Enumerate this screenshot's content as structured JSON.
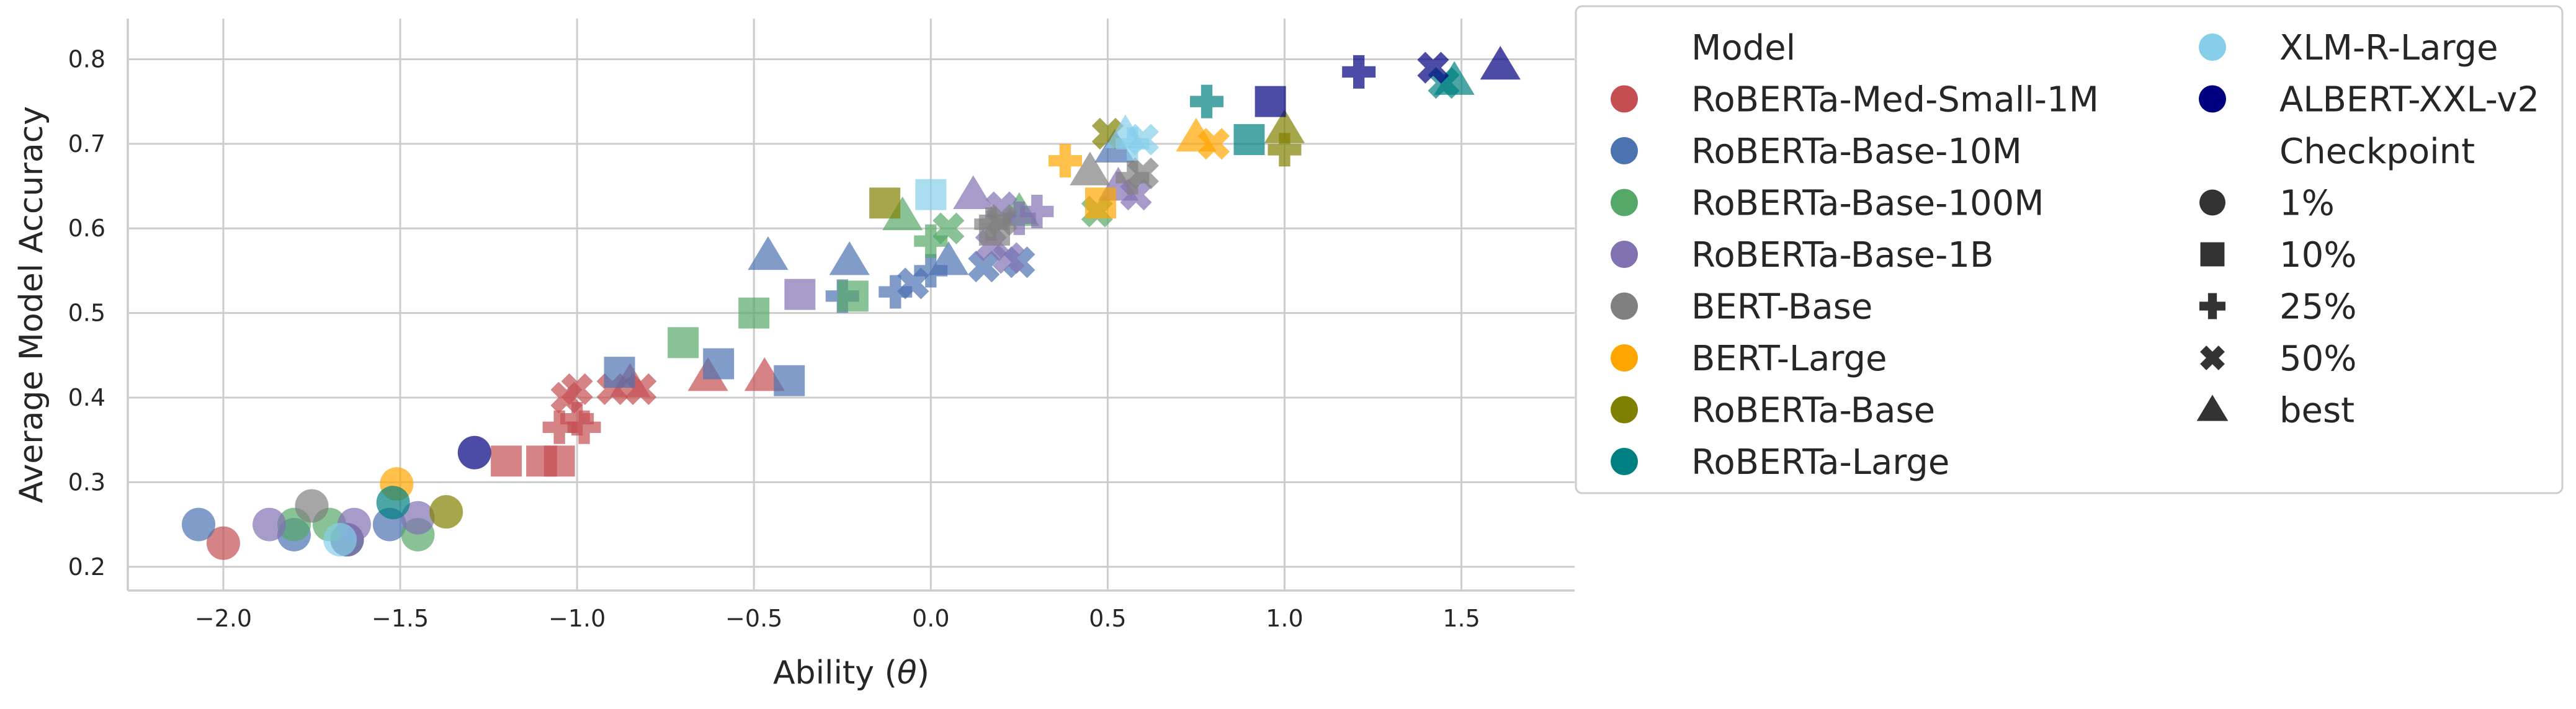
{
  "chart_data": {
    "type": "scatter",
    "title": "",
    "xlabel": "Ability (",
    "xlabel_symbol": "θ",
    "xlabel_suffix": ")",
    "ylabel": "Average Model Accuracy",
    "xlim": [
      -2.27,
      1.82
    ],
    "ylim": [
      0.172,
      0.848
    ],
    "xticks": [
      -2.0,
      -1.5,
      -1.0,
      -0.5,
      0.0,
      0.5,
      1.0,
      1.5
    ],
    "xtick_labels": [
      "−2.0",
      "−1.5",
      "−1.0",
      "−0.5",
      "0.0",
      "0.5",
      "1.0",
      "1.5"
    ],
    "yticks": [
      0.2,
      0.3,
      0.4,
      0.5,
      0.6,
      0.7,
      0.8
    ],
    "ytick_labels": [
      "0.2",
      "0.3",
      "0.4",
      "0.5",
      "0.6",
      "0.7",
      "0.8"
    ],
    "grid": true,
    "legend_placement": "outside-right",
    "legend": {
      "hue_title": "Model",
      "style_title": "Checkpoint",
      "models": [
        {
          "name": "RoBERTa-Med-Small-1M",
          "color": "#c44e52"
        },
        {
          "name": "RoBERTa-Base-10M",
          "color": "#4c72b0"
        },
        {
          "name": "RoBERTa-Base-100M",
          "color": "#55a868"
        },
        {
          "name": "RoBERTa-Base-1B",
          "color": "#8172b2"
        },
        {
          "name": "BERT-Base",
          "color": "#808080"
        },
        {
          "name": "BERT-Large",
          "color": "#ffa500"
        },
        {
          "name": "RoBERTa-Base",
          "color": "#808000"
        },
        {
          "name": "RoBERTa-Large",
          "color": "#008080"
        },
        {
          "name": "XLM-R-Large",
          "color": "#87ceeb"
        },
        {
          "name": "ALBERT-XXL-v2",
          "color": "#000080"
        }
      ],
      "checkpoints": [
        {
          "name": "1%",
          "marker": "circle"
        },
        {
          "name": "10%",
          "marker": "square"
        },
        {
          "name": "25%",
          "marker": "plus"
        },
        {
          "name": "50%",
          "marker": "x"
        },
        {
          "name": "best",
          "marker": "triangle"
        }
      ]
    },
    "series": [
      {
        "name": "RoBERTa-Med-Small-1M",
        "color": "#c44e52",
        "points": [
          {
            "x": -2.0,
            "y": 0.228,
            "m": "circle"
          },
          {
            "x": -1.65,
            "y": 0.232,
            "m": "circle"
          },
          {
            "x": -1.2,
            "y": 0.325,
            "m": "square"
          },
          {
            "x": -1.1,
            "y": 0.325,
            "m": "square"
          },
          {
            "x": -1.05,
            "y": 0.325,
            "m": "square"
          },
          {
            "x": -1.05,
            "y": 0.365,
            "m": "plus"
          },
          {
            "x": -1.0,
            "y": 0.375,
            "m": "plus"
          },
          {
            "x": -0.98,
            "y": 0.365,
            "m": "plus"
          },
          {
            "x": -1.03,
            "y": 0.4,
            "m": "x"
          },
          {
            "x": -1.0,
            "y": 0.41,
            "m": "x"
          },
          {
            "x": -0.9,
            "y": 0.41,
            "m": "x"
          },
          {
            "x": -0.82,
            "y": 0.41,
            "m": "x"
          },
          {
            "x": -0.85,
            "y": 0.418,
            "m": "triangle"
          },
          {
            "x": -0.63,
            "y": 0.425,
            "m": "triangle"
          },
          {
            "x": -0.47,
            "y": 0.425,
            "m": "triangle"
          }
        ]
      },
      {
        "name": "RoBERTa-Base-10M",
        "color": "#4c72b0",
        "points": [
          {
            "x": -2.07,
            "y": 0.25,
            "m": "circle"
          },
          {
            "x": -1.8,
            "y": 0.238,
            "m": "circle"
          },
          {
            "x": -1.53,
            "y": 0.25,
            "m": "circle"
          },
          {
            "x": -1.65,
            "y": 0.232,
            "m": "circle"
          },
          {
            "x": -0.88,
            "y": 0.43,
            "m": "square"
          },
          {
            "x": -0.6,
            "y": 0.44,
            "m": "square"
          },
          {
            "x": -0.4,
            "y": 0.42,
            "m": "square"
          },
          {
            "x": -0.25,
            "y": 0.52,
            "m": "plus"
          },
          {
            "x": -0.1,
            "y": 0.525,
            "m": "plus"
          },
          {
            "x": 0.0,
            "y": 0.55,
            "m": "plus"
          },
          {
            "x": -0.05,
            "y": 0.535,
            "m": "x"
          },
          {
            "x": 0.15,
            "y": 0.555,
            "m": "x"
          },
          {
            "x": 0.25,
            "y": 0.56,
            "m": "x"
          },
          {
            "x": -0.46,
            "y": 0.568,
            "m": "triangle"
          },
          {
            "x": -0.23,
            "y": 0.562,
            "m": "triangle"
          },
          {
            "x": 0.05,
            "y": 0.562,
            "m": "triangle"
          },
          {
            "x": 0.52,
            "y": 0.695,
            "m": "triangle"
          }
        ]
      },
      {
        "name": "RoBERTa-Base-100M",
        "color": "#55a868",
        "points": [
          {
            "x": -1.8,
            "y": 0.25,
            "m": "circle"
          },
          {
            "x": -1.45,
            "y": 0.238,
            "m": "circle"
          },
          {
            "x": -1.7,
            "y": 0.25,
            "m": "circle"
          },
          {
            "x": -0.7,
            "y": 0.465,
            "m": "square"
          },
          {
            "x": -0.5,
            "y": 0.5,
            "m": "square"
          },
          {
            "x": -0.22,
            "y": 0.52,
            "m": "square"
          },
          {
            "x": 0.0,
            "y": 0.585,
            "m": "plus"
          },
          {
            "x": 0.05,
            "y": 0.6,
            "m": "x"
          },
          {
            "x": 0.47,
            "y": 0.62,
            "m": "x"
          },
          {
            "x": -0.08,
            "y": 0.615,
            "m": "triangle"
          },
          {
            "x": 0.25,
            "y": 0.62,
            "m": "triangle"
          }
        ]
      },
      {
        "name": "RoBERTa-Base-1B",
        "color": "#8172b2",
        "points": [
          {
            "x": -1.87,
            "y": 0.25,
            "m": "circle"
          },
          {
            "x": -1.63,
            "y": 0.25,
            "m": "circle"
          },
          {
            "x": -1.45,
            "y": 0.258,
            "m": "circle"
          },
          {
            "x": -0.37,
            "y": 0.522,
            "m": "square"
          },
          {
            "x": 0.3,
            "y": 0.62,
            "m": "plus"
          },
          {
            "x": 0.25,
            "y": 0.612,
            "m": "plus"
          },
          {
            "x": 0.2,
            "y": 0.625,
            "m": "x"
          },
          {
            "x": 0.17,
            "y": 0.58,
            "m": "x"
          },
          {
            "x": 0.58,
            "y": 0.64,
            "m": "x"
          },
          {
            "x": 0.22,
            "y": 0.565,
            "m": "x"
          },
          {
            "x": 0.12,
            "y": 0.64,
            "m": "triangle"
          },
          {
            "x": 0.53,
            "y": 0.65,
            "m": "triangle"
          }
        ]
      },
      {
        "name": "BERT-Base",
        "color": "#808080",
        "points": [
          {
            "x": -1.75,
            "y": 0.272,
            "m": "circle"
          },
          {
            "x": 0.18,
            "y": 0.598,
            "m": "square"
          },
          {
            "x": 0.17,
            "y": 0.605,
            "m": "plus"
          },
          {
            "x": 0.57,
            "y": 0.66,
            "m": "plus"
          },
          {
            "x": 0.2,
            "y": 0.61,
            "m": "x"
          },
          {
            "x": 0.6,
            "y": 0.665,
            "m": "x"
          },
          {
            "x": 0.45,
            "y": 0.668,
            "m": "triangle"
          }
        ]
      },
      {
        "name": "BERT-Large",
        "color": "#ffa500",
        "points": [
          {
            "x": -1.51,
            "y": 0.298,
            "m": "circle"
          },
          {
            "x": 0.48,
            "y": 0.63,
            "m": "square"
          },
          {
            "x": 0.38,
            "y": 0.68,
            "m": "plus"
          },
          {
            "x": 0.8,
            "y": 0.7,
            "m": "x"
          },
          {
            "x": 0.75,
            "y": 0.708,
            "m": "triangle"
          }
        ]
      },
      {
        "name": "RoBERTa-Base",
        "color": "#808000",
        "points": [
          {
            "x": -1.37,
            "y": 0.265,
            "m": "circle"
          },
          {
            "x": -0.13,
            "y": 0.63,
            "m": "square"
          },
          {
            "x": 1.0,
            "y": 0.693,
            "m": "plus"
          },
          {
            "x": 0.5,
            "y": 0.712,
            "m": "x"
          },
          {
            "x": 1.0,
            "y": 0.718,
            "m": "triangle"
          }
        ]
      },
      {
        "name": "RoBERTa-Large",
        "color": "#008080",
        "points": [
          {
            "x": -1.52,
            "y": 0.276,
            "m": "circle"
          },
          {
            "x": 0.9,
            "y": 0.705,
            "m": "square"
          },
          {
            "x": 0.78,
            "y": 0.75,
            "m": "plus"
          },
          {
            "x": 1.45,
            "y": 0.772,
            "m": "x"
          },
          {
            "x": 1.48,
            "y": 0.775,
            "m": "triangle"
          }
        ]
      },
      {
        "name": "XLM-R-Large",
        "color": "#87ceeb",
        "points": [
          {
            "x": -1.67,
            "y": 0.232,
            "m": "circle"
          },
          {
            "x": 0.0,
            "y": 0.64,
            "m": "square"
          },
          {
            "x": 0.57,
            "y": 0.7,
            "m": "plus"
          },
          {
            "x": 0.6,
            "y": 0.705,
            "m": "x"
          },
          {
            "x": 0.55,
            "y": 0.712,
            "m": "triangle"
          }
        ]
      },
      {
        "name": "ALBERT-XXL-v2",
        "color": "#000080",
        "points": [
          {
            "x": -1.29,
            "y": 0.335,
            "m": "circle"
          },
          {
            "x": 0.96,
            "y": 0.75,
            "m": "square"
          },
          {
            "x": 1.21,
            "y": 0.785,
            "m": "plus"
          },
          {
            "x": 1.42,
            "y": 0.79,
            "m": "x"
          },
          {
            "x": 1.61,
            "y": 0.793,
            "m": "triangle"
          }
        ]
      }
    ]
  }
}
